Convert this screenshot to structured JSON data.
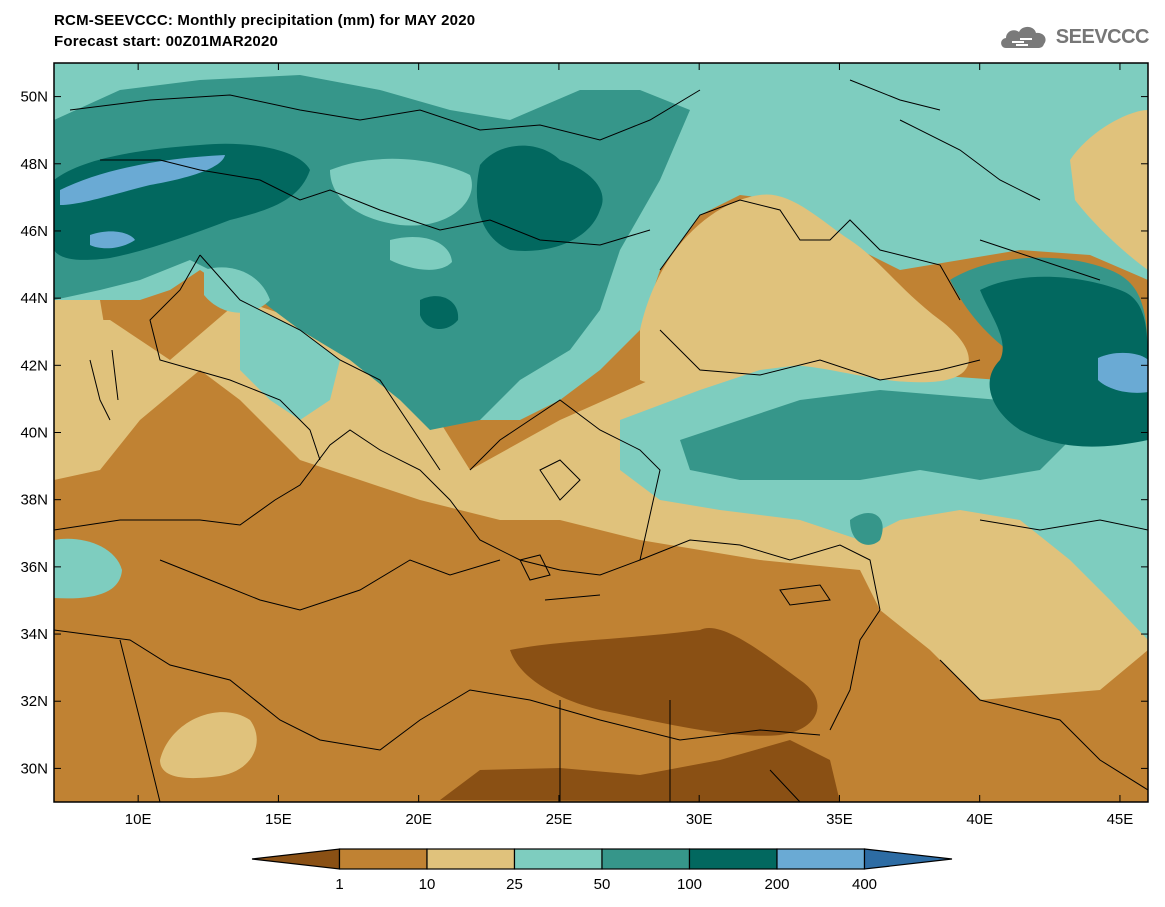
{
  "header": {
    "line1": "RCM-SEEVCCC: Monthly precipitation (mm) for MAY 2020",
    "line2": "Forecast start: 00Z01MAR2020",
    "logo_text": "SEEVCCC"
  },
  "map": {
    "lon_range": [
      7,
      46
    ],
    "lat_range": [
      29,
      51
    ],
    "lon_ticks": [
      "10E",
      "15E",
      "20E",
      "25E",
      "30E",
      "35E",
      "40E",
      "45E"
    ],
    "lat_ticks": [
      "50N",
      "48N",
      "46N",
      "44N",
      "42N",
      "40N",
      "38N",
      "36N",
      "34N",
      "32N",
      "30N"
    ]
  },
  "legend": {
    "labels": [
      "1",
      "10",
      "25",
      "50",
      "100",
      "200",
      "400"
    ],
    "colors": [
      "#8a5014",
      "#c08233",
      "#e0c27c",
      "#7ecdbf",
      "#36968a",
      "#02685f",
      "#6aaad4",
      "#2d6ca4"
    ]
  }
}
